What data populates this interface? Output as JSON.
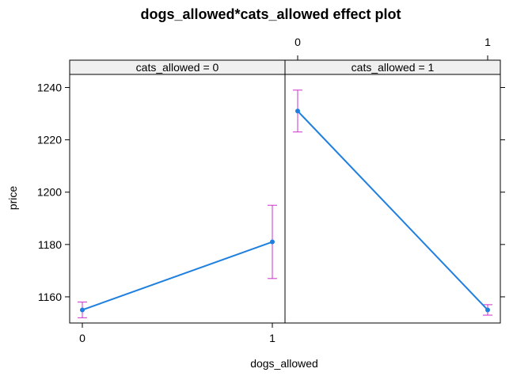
{
  "chart_data": {
    "type": "line",
    "title": "dogs_allowed*cats_allowed effect plot",
    "xlabel": "dogs_allowed",
    "ylabel": "price",
    "x": [
      0,
      1
    ],
    "x_tick_labels": [
      "0",
      "1"
    ],
    "y_ticks": [
      1160,
      1180,
      1200,
      1220,
      1240
    ],
    "ylim": [
      1150,
      1245
    ],
    "grid": false,
    "colors": {
      "line": "#1f7fe0",
      "errorbar": "#cc33cc",
      "strip_bg": "#f0f0f0"
    },
    "panels": [
      {
        "strip": "cats_allowed = 0",
        "values": [
          1155,
          1181
        ],
        "lower": [
          1152,
          1167
        ],
        "upper": [
          1158,
          1195
        ]
      },
      {
        "strip": "cats_allowed = 1",
        "values": [
          1231,
          1155
        ],
        "lower": [
          1223,
          1153
        ],
        "upper": [
          1239,
          1157
        ]
      }
    ]
  }
}
